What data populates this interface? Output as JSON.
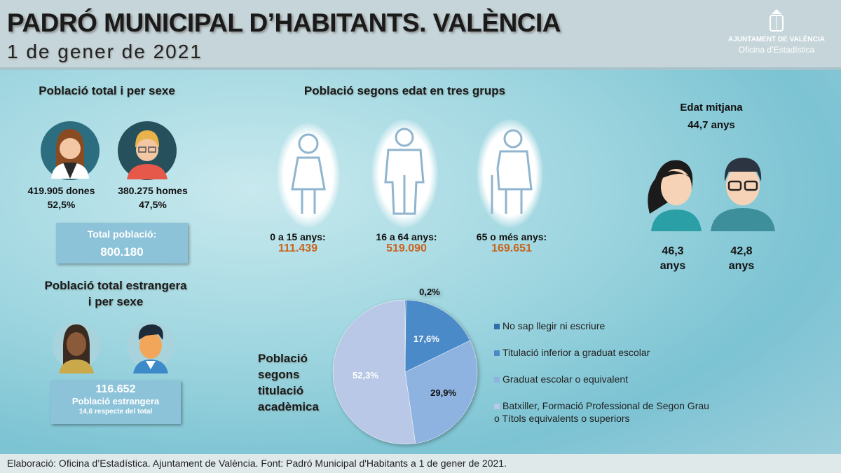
{
  "header": {
    "title": "PADRÓ MUNICIPAL D’HABITANTS. VALÈNCIA",
    "subtitle": "1 de gener de 2021",
    "logo_line1": "AJUNTAMENT DE VALÈNCIA",
    "logo_line2": "Oficina d’Estadística"
  },
  "sex": {
    "heading": "Població total i per sexe",
    "women": "419.905  dones",
    "women_pct": "52,5%",
    "men": "380.275  homes",
    "men_pct": "47,5%",
    "total_label": "Total població:",
    "total_value": "800.180"
  },
  "foreign": {
    "heading_line1": "Població total estrangera",
    "heading_line2": "i per sexe",
    "value": "116.652",
    "label": "Població estrangera",
    "note": "14,6 respecte del total"
  },
  "age": {
    "heading": "Població segons edat en tres grups",
    "groups": [
      {
        "label": "0 a 15 anys:",
        "value": "111.439"
      },
      {
        "label": "16 a 64 anys:",
        "value": "519.090"
      },
      {
        "label": "65 o més anys:",
        "value": "169.651"
      }
    ]
  },
  "mean_age": {
    "heading": "Edat mitjana",
    "value": "44,7 anys",
    "women": "46,3",
    "women_unit": "anys",
    "men": "42,8",
    "men_unit": "anys"
  },
  "chart_data": {
    "type": "pie",
    "title": "Població segons titulació acadèmica",
    "title_lines": [
      "Població",
      "segons",
      "titulació",
      "acadèmica"
    ],
    "categories": [
      "No sap llegir ni escriure",
      "Titulació inferior a graduat escolar",
      "Graduat escolar o equivalent",
      "Batxiller, Formació Professional de Segon Grau o Títols equivalents o superiors"
    ],
    "legend_lines": [
      [
        "No sap llegir ni escriure"
      ],
      [
        "Titulació inferior a graduat escolar"
      ],
      [
        "Graduat escolar o equivalent"
      ],
      [
        "Batxiller, Formació Professional de Segon Grau",
        "o Títols equivalents o superiors"
      ]
    ],
    "values": [
      0.2,
      17.6,
      29.9,
      52.3
    ],
    "labels": [
      "0,2%",
      "17,6%",
      "29,9%",
      "52,3%"
    ],
    "colors": [
      "#2f6ea8",
      "#4a8ac8",
      "#8fb3e0",
      "#b9c8e6"
    ],
    "legend": "right"
  },
  "footer": "Elaboració: Oficina d’Estadística. Ajuntament de València. Font: Padró Municipal d'Habitants a 1 de gener de 2021."
}
